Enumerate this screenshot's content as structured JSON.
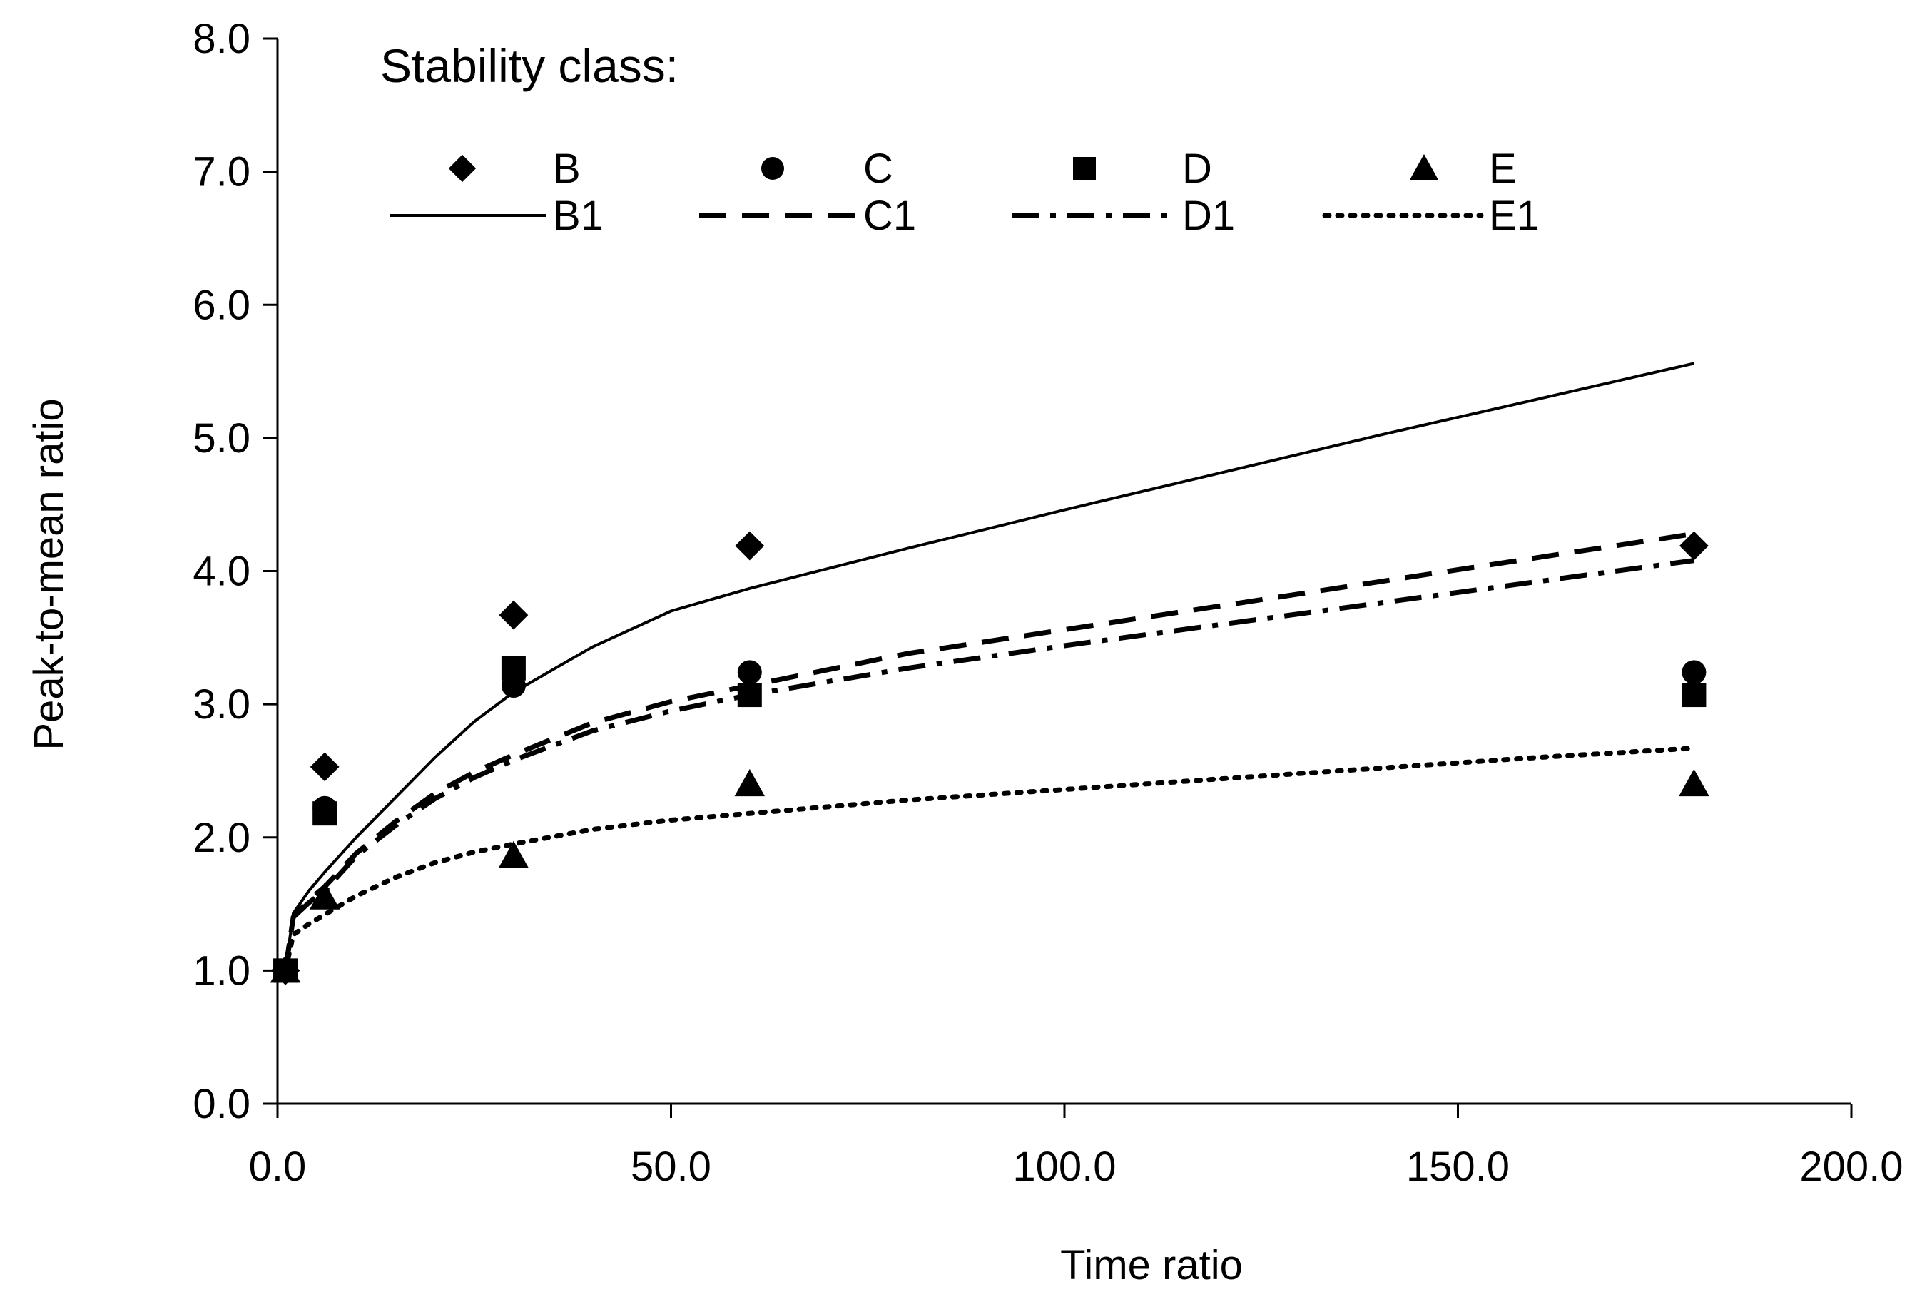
{
  "chart_data": {
    "type": "scatter",
    "title": "",
    "xlabel": "Time ratio",
    "ylabel": "Peak-to-mean ratio",
    "xlim": [
      0,
      200
    ],
    "ylim": [
      0,
      8
    ],
    "xticks": [
      0,
      50,
      100,
      150,
      200
    ],
    "yticks": [
      0,
      1,
      2,
      3,
      4,
      5,
      6,
      7,
      8
    ],
    "xtick_labels": [
      "0.0",
      "50.0",
      "100.0",
      "150.0",
      "200.0"
    ],
    "ytick_labels": [
      "0.0",
      "1.0",
      "2.0",
      "3.0",
      "4.0",
      "5.0",
      "6.0",
      "7.0",
      "8.0"
    ],
    "grid": false,
    "legend": {
      "title": "Stability class:",
      "placement": "top-left"
    },
    "series": [
      {
        "name": "B",
        "kind": "points",
        "marker": "diamond",
        "x": [
          1,
          6,
          30,
          60,
          180
        ],
        "y": [
          1.0,
          2.53,
          3.67,
          4.19,
          4.19
        ]
      },
      {
        "name": "C",
        "kind": "points",
        "marker": "circle",
        "x": [
          1,
          6,
          30,
          60,
          180
        ],
        "y": [
          1.0,
          2.22,
          3.14,
          3.24,
          3.24
        ]
      },
      {
        "name": "D",
        "kind": "points",
        "marker": "square",
        "x": [
          1,
          6,
          30,
          60,
          180
        ],
        "y": [
          1.0,
          2.18,
          3.27,
          3.07,
          3.07
        ]
      },
      {
        "name": "E",
        "kind": "points",
        "marker": "triangle",
        "x": [
          1,
          6,
          30,
          60,
          180
        ],
        "y": [
          1.0,
          1.55,
          1.86,
          2.4,
          2.4
        ]
      },
      {
        "name": "B1",
        "kind": "line",
        "dash": "solid",
        "x": [
          1,
          2,
          4,
          6,
          10,
          15,
          20,
          25,
          30,
          40,
          50,
          60,
          80,
          100,
          120,
          140,
          160,
          180
        ],
        "y": [
          1.0,
          1.43,
          1.6,
          1.74,
          2.0,
          2.3,
          2.6,
          2.87,
          3.09,
          3.43,
          3.7,
          3.87,
          4.17,
          4.46,
          4.74,
          5.02,
          5.29,
          5.56
        ]
      },
      {
        "name": "C1",
        "kind": "line",
        "dash": "dashed",
        "x": [
          1,
          2,
          4,
          6,
          10,
          15,
          20,
          25,
          30,
          40,
          50,
          60,
          80,
          100,
          120,
          140,
          160,
          180
        ],
        "y": [
          1.0,
          1.4,
          1.53,
          1.63,
          1.88,
          2.12,
          2.33,
          2.49,
          2.62,
          2.86,
          3.02,
          3.14,
          3.38,
          3.56,
          3.74,
          3.92,
          4.1,
          4.28
        ]
      },
      {
        "name": "D1",
        "kind": "line",
        "dash": "dashdot",
        "x": [
          1,
          2,
          4,
          6,
          10,
          15,
          20,
          25,
          30,
          40,
          50,
          60,
          80,
          100,
          120,
          140,
          160,
          180
        ],
        "y": [
          1.0,
          1.4,
          1.51,
          1.6,
          1.86,
          2.09,
          2.29,
          2.45,
          2.58,
          2.8,
          2.95,
          3.07,
          3.27,
          3.44,
          3.6,
          3.76,
          3.92,
          4.08
        ]
      },
      {
        "name": "E1",
        "kind": "line",
        "dash": "dotted",
        "x": [
          1,
          2,
          4,
          6,
          10,
          15,
          20,
          25,
          30,
          40,
          50,
          60,
          80,
          100,
          120,
          140,
          160,
          180
        ],
        "y": [
          1.0,
          1.27,
          1.35,
          1.42,
          1.56,
          1.7,
          1.81,
          1.89,
          1.95,
          2.06,
          2.13,
          2.18,
          2.28,
          2.36,
          2.44,
          2.52,
          2.6,
          2.67
        ]
      }
    ]
  }
}
